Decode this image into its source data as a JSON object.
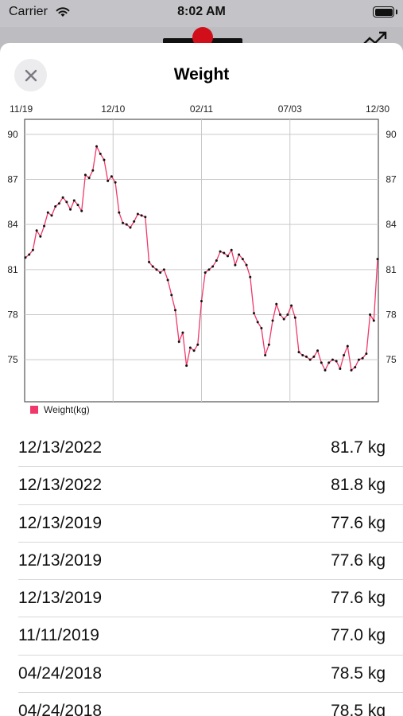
{
  "status": {
    "carrier": "Carrier",
    "time": "8:02 AM"
  },
  "sheet": {
    "title": "Weight"
  },
  "chart_data": {
    "type": "line",
    "x_tick_labels": [
      "11/19",
      "12/10",
      "02/11",
      "07/03",
      "12/30"
    ],
    "y_ticks": [
      75,
      78,
      81,
      84,
      87,
      90
    ],
    "ylim": [
      72.2,
      91
    ],
    "legend": "Weight(kg)",
    "legend_position": "bottom-left",
    "grid": true,
    "line_color": "#f0396a",
    "point_color": "#111111",
    "series": [
      {
        "name": "Weight(kg)",
        "values": [
          81.8,
          82.0,
          82.3,
          83.6,
          83.2,
          83.9,
          84.8,
          84.6,
          85.2,
          85.4,
          85.8,
          85.5,
          85.0,
          85.6,
          85.3,
          84.9,
          87.3,
          87.1,
          87.6,
          89.2,
          88.7,
          88.3,
          86.9,
          87.2,
          86.8,
          84.8,
          84.1,
          84.0,
          83.8,
          84.2,
          84.7,
          84.6,
          84.5,
          81.5,
          81.2,
          81.0,
          80.8,
          81.0,
          80.3,
          79.3,
          78.3,
          76.2,
          76.8,
          74.6,
          75.8,
          75.6,
          76.0,
          78.9,
          80.8,
          81.0,
          81.2,
          81.6,
          82.2,
          82.1,
          81.9,
          82.3,
          81.3,
          82.0,
          81.7,
          81.3,
          80.5,
          78.1,
          77.5,
          77.1,
          75.3,
          76.0,
          77.6,
          78.7,
          78.0,
          77.7,
          78.0,
          78.6,
          77.8,
          75.5,
          75.3,
          75.2,
          75.0,
          75.2,
          75.6,
          74.8,
          74.3,
          74.8,
          75.0,
          74.9,
          74.4,
          75.3,
          75.9,
          74.3,
          74.5,
          75.0,
          75.1,
          75.4,
          78.0,
          77.6,
          81.7
        ]
      }
    ]
  },
  "entries": [
    {
      "date": "12/13/2022",
      "value": "81.7 kg"
    },
    {
      "date": "12/13/2022",
      "value": "81.8 kg"
    },
    {
      "date": "12/13/2019",
      "value": "77.6 kg"
    },
    {
      "date": "12/13/2019",
      "value": "77.6 kg"
    },
    {
      "date": "12/13/2019",
      "value": "77.6 kg"
    },
    {
      "date": "11/11/2019",
      "value": "77.0 kg"
    },
    {
      "date": "04/24/2018",
      "value": "78.5 kg"
    },
    {
      "date": "04/24/2018",
      "value": "78.5 kg"
    }
  ],
  "icons": {
    "close": "close-icon",
    "wifi": "wifi-icon",
    "battery": "battery-icon",
    "trend": "trend-icon"
  },
  "colors": {
    "accent": "#f0396a",
    "background": "#ffffff",
    "dim": "#b9b9bd"
  }
}
